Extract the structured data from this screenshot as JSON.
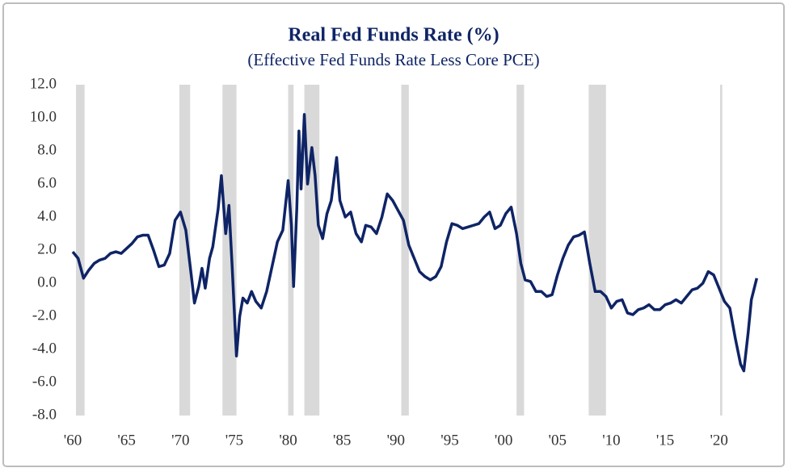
{
  "chart_data": {
    "type": "line",
    "title": "Real Fed Funds Rate (%)",
    "subtitle": "(Effective Fed Funds Rate Less Core PCE)",
    "x": [
      1960.0,
      1960.5,
      1961.0,
      1961.5,
      1962.0,
      1962.5,
      1963.0,
      1963.5,
      1964.0,
      1964.5,
      1965.0,
      1965.5,
      1966.0,
      1966.5,
      1967.0,
      1967.5,
      1968.0,
      1968.5,
      1969.0,
      1969.5,
      1970.0,
      1970.5,
      1971.0,
      1971.3,
      1971.7,
      1972.0,
      1972.3,
      1972.7,
      1973.0,
      1973.5,
      1973.8,
      1974.2,
      1974.5,
      1974.8,
      1975.2,
      1975.5,
      1975.8,
      1976.2,
      1976.6,
      1977.0,
      1977.5,
      1978.0,
      1978.5,
      1979.0,
      1979.5,
      1980.0,
      1980.3,
      1980.5,
      1980.8,
      1981.0,
      1981.2,
      1981.5,
      1981.8,
      1982.2,
      1982.5,
      1982.8,
      1983.2,
      1983.6,
      1984.0,
      1984.5,
      1984.8,
      1985.3,
      1985.8,
      1986.3,
      1986.8,
      1987.2,
      1987.7,
      1988.2,
      1988.7,
      1989.2,
      1989.7,
      1990.2,
      1990.7,
      1991.2,
      1991.7,
      1992.2,
      1992.7,
      1993.2,
      1993.7,
      1994.2,
      1994.7,
      1995.2,
      1995.7,
      1996.2,
      1996.7,
      1997.2,
      1997.7,
      1998.2,
      1998.7,
      1999.2,
      1999.7,
      2000.2,
      2000.7,
      2001.2,
      2001.6,
      2002.0,
      2002.5,
      2003.0,
      2003.5,
      2004.0,
      2004.5,
      2005.0,
      2005.5,
      2006.0,
      2006.5,
      2007.0,
      2007.5,
      2008.0,
      2008.5,
      2009.0,
      2009.5,
      2010.0,
      2010.5,
      2011.0,
      2011.5,
      2012.0,
      2012.5,
      2013.0,
      2013.5,
      2014.0,
      2014.5,
      2015.0,
      2015.5,
      2016.0,
      2016.5,
      2017.0,
      2017.5,
      2018.0,
      2018.5,
      2019.0,
      2019.5,
      2020.0,
      2020.5,
      2021.0,
      2021.5,
      2022.0,
      2022.3,
      2022.7,
      2023.0,
      2023.5
    ],
    "series": [
      {
        "color": "#0f2466",
        "values": [
          1.9,
          1.5,
          0.3,
          0.8,
          1.2,
          1.4,
          1.5,
          1.8,
          1.9,
          1.8,
          2.1,
          2.4,
          2.8,
          2.9,
          2.9,
          2.0,
          1.0,
          1.1,
          1.8,
          3.8,
          4.3,
          3.2,
          0.5,
          -1.2,
          -0.2,
          0.9,
          -0.3,
          1.5,
          2.2,
          4.5,
          6.5,
          3.0,
          4.7,
          1.0,
          -4.4,
          -2.0,
          -0.9,
          -1.2,
          -0.5,
          -1.1,
          -1.5,
          -0.5,
          1.0,
          2.5,
          3.2,
          6.2,
          3.5,
          -0.2,
          4.5,
          9.2,
          5.7,
          10.2,
          6.0,
          8.2,
          6.5,
          3.5,
          2.7,
          4.2,
          5.0,
          7.6,
          5.0,
          4.0,
          4.3,
          3.0,
          2.5,
          3.5,
          3.4,
          3.0,
          4.0,
          5.4,
          5.0,
          4.4,
          3.8,
          2.3,
          1.5,
          0.7,
          0.4,
          0.2,
          0.4,
          1.0,
          2.5,
          3.6,
          3.5,
          3.3,
          3.4,
          3.5,
          3.6,
          4.0,
          4.3,
          3.3,
          3.5,
          4.2,
          4.6,
          3.0,
          1.2,
          0.2,
          0.1,
          -0.5,
          -0.5,
          -0.8,
          -0.7,
          0.5,
          1.5,
          2.3,
          2.8,
          2.9,
          3.1,
          1.2,
          -0.5,
          -0.5,
          -0.8,
          -1.5,
          -1.1,
          -1.0,
          -1.8,
          -1.9,
          -1.6,
          -1.5,
          -1.3,
          -1.6,
          -1.6,
          -1.3,
          -1.2,
          -1.0,
          -1.2,
          -0.8,
          -0.4,
          -0.3,
          0.0,
          0.7,
          0.5,
          -0.3,
          -1.1,
          -1.5,
          -3.3,
          -4.9,
          -5.3,
          -3.0,
          -1.0,
          0.3
        ]
      }
    ],
    "recessions": [
      [
        1960.3,
        1961.1
      ],
      [
        1969.9,
        1970.9
      ],
      [
        1973.9,
        1975.2
      ],
      [
        1980.0,
        1980.5
      ],
      [
        1981.5,
        1982.9
      ],
      [
        1990.5,
        1991.2
      ],
      [
        2001.2,
        2001.9
      ],
      [
        2007.9,
        2009.5
      ],
      [
        2020.1,
        2020.3
      ]
    ],
    "recession_color": "#d9d9d9",
    "xlim": [
      1960,
      2024
    ],
    "ylim": [
      -8,
      12
    ],
    "xticks": [
      {
        "value": 1960,
        "label": "'60"
      },
      {
        "value": 1965,
        "label": "'65"
      },
      {
        "value": 1970,
        "label": "'70"
      },
      {
        "value": 1975,
        "label": "'75"
      },
      {
        "value": 1980,
        "label": "'80"
      },
      {
        "value": 1985,
        "label": "'85"
      },
      {
        "value": 1990,
        "label": "'90"
      },
      {
        "value": 1995,
        "label": "'95"
      },
      {
        "value": 2000,
        "label": "'00"
      },
      {
        "value": 2005,
        "label": "'05"
      },
      {
        "value": 2010,
        "label": "'10"
      },
      {
        "value": 2015,
        "label": "'15"
      },
      {
        "value": 2020,
        "label": "'20"
      }
    ],
    "yticks": [
      {
        "value": 12,
        "label": "12.0"
      },
      {
        "value": 10,
        "label": "10.0"
      },
      {
        "value": 8,
        "label": "8.0"
      },
      {
        "value": 6,
        "label": "6.0"
      },
      {
        "value": 4,
        "label": "4.0"
      },
      {
        "value": 2,
        "label": "2.0"
      },
      {
        "value": 0,
        "label": "0.0"
      },
      {
        "value": -2,
        "label": "-2.0"
      },
      {
        "value": -4,
        "label": "-4.0"
      },
      {
        "value": -6,
        "label": "-6.0"
      },
      {
        "value": -8,
        "label": "-8.0"
      }
    ]
  }
}
